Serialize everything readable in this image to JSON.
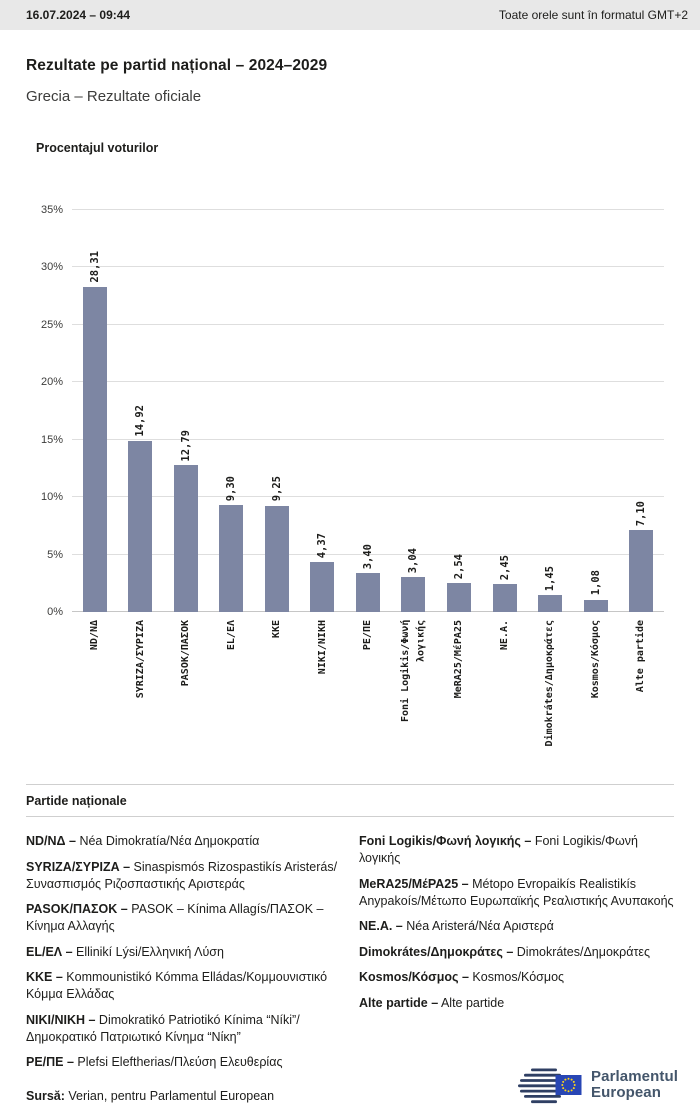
{
  "header": {
    "datetime": "16.07.2024 – 09:44",
    "timezone_note": "Toate orele sunt în formatul GMT+2"
  },
  "page": {
    "title": "Rezultate pe partid național – 2024–2029",
    "subtitle": "Grecia – Rezultate oficiale"
  },
  "chart_data": {
    "type": "bar",
    "title": "Procentajul voturilor",
    "xlabel": "",
    "ylabel": "Procentajul voturilor",
    "categories": [
      "ND/ΝΔ",
      "SYRIZA/ΣΥΡΙΖΑ",
      "PASOK/ΠΑΣΟΚ",
      "EL/ΕΛ",
      "KKE",
      "NIKI/ΝΙΚΗ",
      "PE/ΠΕ",
      "Foni Logikis/Φωνή λογικής",
      "MeRA25/ΜέΡΑ25",
      "NE.A.",
      "Dimokrátes/Δημοκράτες",
      "Kosmos/Κόσμος",
      "Alte partide"
    ],
    "values": [
      28.31,
      14.92,
      12.79,
      9.3,
      9.25,
      4.37,
      3.4,
      3.04,
      2.54,
      2.45,
      1.45,
      1.08,
      7.1
    ],
    "value_labels": [
      "28,31",
      "14,92",
      "12,79",
      "9,30",
      "9,25",
      "4,37",
      "3,40",
      "3,04",
      "2,54",
      "2,45",
      "1,45",
      "1,08",
      "7,10"
    ],
    "ylim": [
      0,
      35
    ],
    "yticks": [
      "0%",
      "5%",
      "10%",
      "15%",
      "20%",
      "25%",
      "30%",
      "35%"
    ],
    "grid": true,
    "legend_position": "none",
    "bar_color": "#7d86a3"
  },
  "legend": {
    "title": "Partide naționale",
    "columns": [
      [
        {
          "abbr": "ND/ΝΔ –",
          "name": "Néa Dimokratía/Νέα Δημοκρατία"
        },
        {
          "abbr": "SYRIZA/ΣΥΡΙΖΑ –",
          "name": "Sinaspismós Rizospastikís Aristerás/Συνασπισμός Ριζοσπαστικής Αριστεράς"
        },
        {
          "abbr": "PASOK/ΠΑΣΟΚ –",
          "name": "PASOK – Kínima Allagís/ΠΑΣΟΚ – Κίνημα Αλλαγής"
        },
        {
          "abbr": "EL/ΕΛ –",
          "name": "Ellinikí Lýsi/Ελληνική Λύση"
        },
        {
          "abbr": "KKE –",
          "name": "Kommounistikó Kómma Elládas/Κομμουνιστικό Κόμμα Ελλάδας"
        },
        {
          "abbr": "NIKI/ΝΙΚΗ –",
          "name": "Dimokratikó Patriotikó Kínima “Níki”/Δημοκρατικό Πατριωτικό Κίνημα “Νίκη”"
        },
        {
          "abbr": "PE/ΠΕ –",
          "name": "Plefsi Eleftherias/Πλεύση Ελευθερίας"
        }
      ],
      [
        {
          "abbr": "Foni Logikis/Φωνή λογικής –",
          "name": "Foni Logikis/Φωνή λογικής"
        },
        {
          "abbr": "MeRA25/ΜέΡΑ25 –",
          "name": "Métopo Evropaikís Realistikís Anypakoís/Μέτωπο Ευρωπαϊκής Ρεαλιστικής Ανυπακοής"
        },
        {
          "abbr": "NE.A. –",
          "name": "Néa Aristerá/Νέα Αριστερά"
        },
        {
          "abbr": "Dimokrátes/Δημοκράτες –",
          "name": "Dimokrátes/Δημοκράτες"
        },
        {
          "abbr": "Kosmos/Κόσμος –",
          "name": "Kosmos/Κόσμος"
        },
        {
          "abbr": "Alte partide –",
          "name": "Alte partide"
        }
      ]
    ]
  },
  "footer": {
    "source_label": "Sursă:",
    "source_text": "Verian, pentru Parlamentul European",
    "logo_line1": "Parlamentul",
    "logo_line2": "European"
  },
  "colors": {
    "bar": "#7d86a3",
    "topbar_bg": "#e8e8e8",
    "logo_navy": "#2f3f63",
    "flag_blue": "#2846b4",
    "star_yellow": "#ffd617"
  }
}
